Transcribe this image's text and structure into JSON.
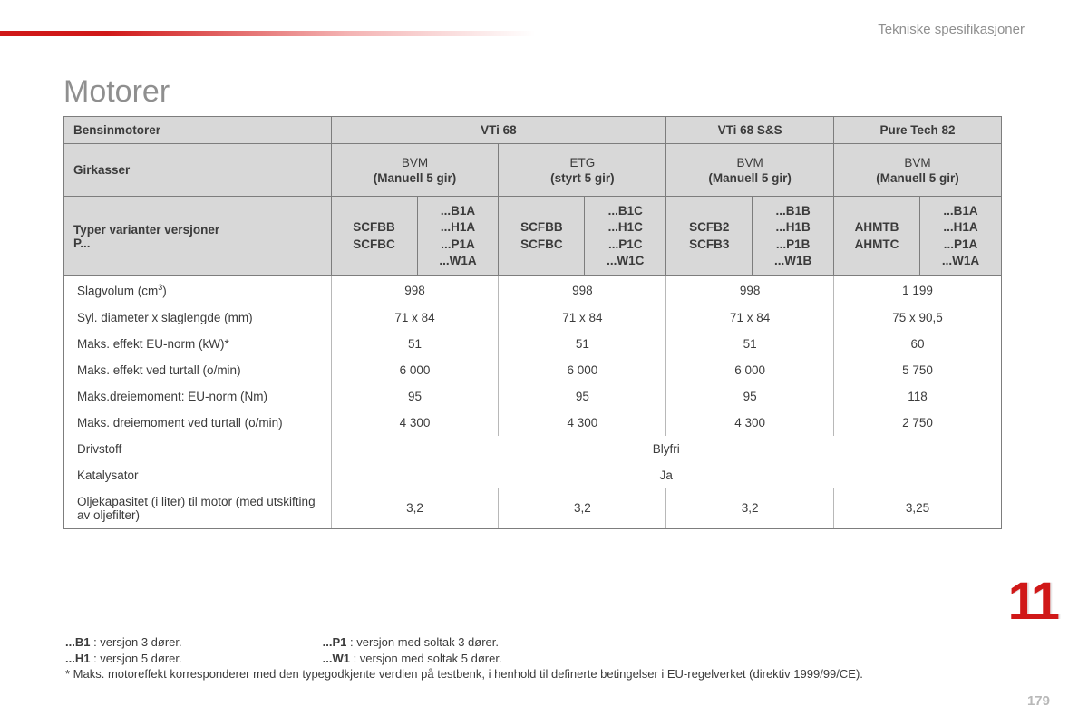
{
  "section_label": "Tekniske spesifikasjoner",
  "title": "Motorer",
  "chapter_number": "11",
  "page_number": "179",
  "header": {
    "engines_label": "Bensinmotorer",
    "gearboxes_label": "Girkasser",
    "variants_label_1": "Typer varianter versjoner",
    "variants_label_2": "P...",
    "engines": [
      "VTi 68",
      "VTi 68 S&S",
      "Pure Tech 82"
    ],
    "gearboxes": [
      {
        "main": "BVM",
        "sub": "(Manuell 5 gir)"
      },
      {
        "main": "ETG",
        "sub": "(styrt 5 gir)"
      },
      {
        "main": "BVM",
        "sub": "(Manuell 5 gir)"
      },
      {
        "main": "BVM",
        "sub": "(Manuell 5 gir)"
      }
    ],
    "variants": [
      {
        "a": "SCFBB\nSCFBC",
        "b": "...B1A\n...H1A\n...P1A\n...W1A"
      },
      {
        "a": "SCFBB\nSCFBC",
        "b": "...B1C\n...H1C\n...P1C\n...W1C"
      },
      {
        "a": "SCFB2\nSCFB3",
        "b": "...B1B\n...H1B\n...P1B\n...W1B"
      },
      {
        "a": "AHMTB\nAHMTC",
        "b": "...B1A\n...H1A\n...P1A\n...W1A"
      }
    ]
  },
  "rows": [
    {
      "label": "Slagvolum (cm³)",
      "vals": [
        "998",
        "998",
        "998",
        "1 199"
      ]
    },
    {
      "label": "Syl. diameter x slaglengde (mm)",
      "vals": [
        "71 x 84",
        "71 x 84",
        "71 x 84",
        "75 x 90,5"
      ]
    },
    {
      "label": "Maks. effekt EU-norm (kW)*",
      "vals": [
        "51",
        "51",
        "51",
        "60"
      ]
    },
    {
      "label": "Maks. effekt ved turtall (o/min)",
      "vals": [
        "6 000",
        "6 000",
        "6 000",
        "5 750"
      ]
    },
    {
      "label": "Maks.dreiemoment: EU-norm (Nm)",
      "vals": [
        "95",
        "95",
        "95",
        "118"
      ]
    },
    {
      "label": "Maks. dreiemoment ved turtall (o/min)",
      "vals": [
        "4 300",
        "4 300",
        "4 300",
        "2 750"
      ]
    }
  ],
  "span_rows": [
    {
      "label": "Drivstoff",
      "val": "Blyfri"
    },
    {
      "label": "Katalysator",
      "val": "Ja"
    }
  ],
  "last_row": {
    "label": "Oljekapasitet (i liter) til motor (med utskifting av oljefilter)",
    "vals": [
      "3,2",
      "3,2",
      "3,2",
      "3,25"
    ]
  },
  "footnotes": {
    "b1": {
      "key": "...B1",
      "text": " : versjon 3 dører."
    },
    "h1": {
      "key": "...H1",
      "text": " : versjon 5 dører."
    },
    "p1": {
      "key": "...P1",
      "text": " : versjon med soltak 3 dører."
    },
    "w1": {
      "key": "...W1",
      "text": " : versjon med soltak 5 dører."
    },
    "star": "* Maks. motoreffekt korresponderer med den typegodkjente verdien på testbenk, i henhold til definerte betingelser i EU-regelverket (direktiv 1999/99/CE)."
  }
}
